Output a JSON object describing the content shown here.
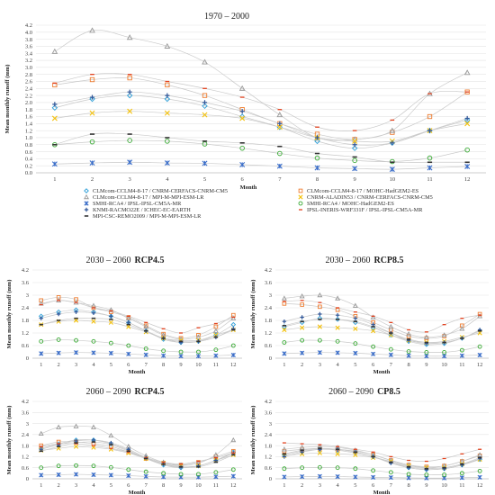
{
  "legend": [
    {
      "label": "CLMcom-CCLM4-8-17 / CNRM-CERFACS-CNRM-CM5",
      "color": "#2e9fd8",
      "marker": "diamond"
    },
    {
      "label": "CLMcom-CCLM4-8-17 / MOHC-HadGEM2-ES",
      "color": "#ee7d31",
      "marker": "square"
    },
    {
      "label": "CLMcom-CCLM4-8-17 / MPI-M-MPI-ESM-LR",
      "color": "#999999",
      "marker": "triangle"
    },
    {
      "label": "CNRM-ALADIN53 / CNRM-CERFACS-CNRM-CM5",
      "color": "#f4c20d",
      "marker": "x"
    },
    {
      "label": "SMHI-RCA4 / IPSL-IPSL-CM5A-MR",
      "color": "#3b6ec9",
      "marker": "star"
    },
    {
      "label": "SMHI-RCA4 / MOHC-HadGEM2-ES",
      "color": "#3aaa35",
      "marker": "circle"
    },
    {
      "label": "KNMI-RACMO22E / ICHEC-EC-EARTH",
      "color": "#2f5597",
      "marker": "plus"
    },
    {
      "label": "IPSL-INERIS-WRF331F / IPSL-IPSL-CM5A-MR",
      "color": "#e2401c",
      "marker": "line"
    },
    {
      "label": "MPI-CSC-REMO2009 / MPI-M-MPI-ESM-LR",
      "color": "#333333",
      "marker": "dash"
    }
  ],
  "chart_data": [
    {
      "type": "line",
      "title": "1970 – 2000",
      "xlabel": "Month",
      "ylabel": "Mean monthly runoff (mm)",
      "ylim": [
        0,
        4.2
      ],
      "yticks": [
        "0.0",
        "0.2",
        "0.4",
        "0.6",
        "0.8",
        "1.0",
        "1.2",
        "1.4",
        "1.6",
        "1.8",
        "2.0",
        "2.2",
        "2.4",
        "2.6",
        "2.8",
        "3.0",
        "3.2",
        "3.4",
        "3.6",
        "3.8",
        "4.0",
        "4.2"
      ],
      "x": [
        1,
        2,
        3,
        4,
        5,
        6,
        7,
        8,
        9,
        10,
        11,
        12
      ],
      "series": [
        {
          "name": "CLMcom-CCLM4-8-17 / CNRM-CERFACS-CNRM-CM5",
          "values": [
            1.85,
            2.1,
            2.2,
            2.1,
            1.9,
            1.6,
            1.3,
            0.9,
            0.7,
            0.85,
            1.2,
            1.5
          ]
        },
        {
          "name": "CLMcom-CCLM4-8-17 / MOHC-HadGEM2-ES",
          "values": [
            2.5,
            2.65,
            2.7,
            2.5,
            2.2,
            1.8,
            1.4,
            1.1,
            0.95,
            1.15,
            1.6,
            2.3
          ]
        },
        {
          "name": "CLMcom-CCLM4-8-17 / MPI-M-MPI-ESM-LR",
          "values": [
            3.45,
            4.05,
            3.85,
            3.6,
            3.15,
            2.4,
            1.65,
            1.0,
            0.95,
            1.2,
            2.25,
            2.85
          ]
        },
        {
          "name": "CNRM-ALADIN53 / CNRM-CERFACS-CNRM-CM5",
          "values": [
            1.55,
            1.7,
            1.75,
            1.7,
            1.65,
            1.55,
            1.3,
            1.0,
            0.9,
            0.9,
            1.2,
            1.4
          ]
        },
        {
          "name": "SMHI-RCA4 / IPSL-IPSL-CM5A-MR",
          "values": [
            0.25,
            0.28,
            0.3,
            0.28,
            0.27,
            0.23,
            0.19,
            0.14,
            0.12,
            0.1,
            0.14,
            0.18
          ]
        },
        {
          "name": "SMHI-RCA4 / MOHC-HadGEM2-ES",
          "values": [
            0.8,
            0.88,
            0.92,
            0.9,
            0.82,
            0.7,
            0.55,
            0.42,
            0.35,
            0.32,
            0.42,
            0.65
          ]
        },
        {
          "name": "KNMI-RACMO22E / ICHEC-EC-EARTH",
          "values": [
            1.95,
            2.15,
            2.3,
            2.2,
            2.0,
            1.75,
            1.4,
            1.0,
            0.8,
            0.85,
            1.2,
            1.55
          ]
        },
        {
          "name": "IPSL-INERIS-WRF331F / IPSL-IPSL-CM5A-MR",
          "values": [
            2.55,
            2.8,
            2.8,
            2.6,
            2.4,
            2.15,
            1.8,
            1.3,
            1.2,
            1.5,
            2.25,
            2.3
          ]
        },
        {
          "name": "MPI-CSC-REMO2009 / MPI-M-MPI-ESM-LR",
          "values": [
            0.8,
            1.1,
            1.1,
            1.0,
            0.9,
            0.85,
            0.75,
            0.55,
            0.45,
            0.3,
            0.3,
            0.3
          ]
        }
      ]
    },
    {
      "type": "line",
      "title": "2030 – 2060",
      "title_bold": "RCP4.5",
      "xlabel": "Month",
      "ylabel": "Mean monthly runoff (mm)",
      "ylim": [
        0,
        4.2
      ],
      "yticks": [
        "0",
        "0.6",
        "1.2",
        "1.8",
        "2.4",
        "3",
        "3.6",
        "4.2"
      ],
      "x": [
        1,
        2,
        3,
        4,
        5,
        6,
        7,
        8,
        9,
        10,
        11,
        12
      ],
      "series": [
        {
          "name": "CLMcom-CCLM4-8-17 / CNRM-CERFACS-CNRM-CM5",
          "values": [
            2.0,
            2.2,
            2.3,
            2.2,
            2.0,
            1.7,
            1.3,
            0.9,
            0.75,
            0.8,
            1.1,
            1.6
          ]
        },
        {
          "name": "CLMcom-CCLM4-8-17 / MOHC-HadGEM2-ES",
          "values": [
            2.75,
            2.9,
            2.8,
            2.4,
            2.2,
            1.95,
            1.55,
            1.15,
            0.95,
            1.1,
            1.5,
            2.05
          ]
        },
        {
          "name": "CLMcom-CCLM4-8-17 / MPI-M-MPI-ESM-LR",
          "values": [
            2.6,
            2.75,
            2.65,
            2.5,
            2.3,
            1.9,
            1.5,
            1.1,
            0.9,
            1.0,
            1.3,
            1.9
          ]
        },
        {
          "name": "CNRM-ALADIN53 / CNRM-CERFACS-CNRM-CM5",
          "values": [
            1.6,
            1.75,
            1.8,
            1.75,
            1.7,
            1.5,
            1.25,
            0.95,
            0.85,
            0.85,
            1.1,
            1.35
          ]
        },
        {
          "name": "SMHI-RCA4 / IPSL-IPSL-CM5A-MR",
          "values": [
            0.22,
            0.25,
            0.27,
            0.26,
            0.24,
            0.2,
            0.16,
            0.12,
            0.1,
            0.1,
            0.12,
            0.15
          ]
        },
        {
          "name": "SMHI-RCA4 / MOHC-HadGEM2-ES",
          "values": [
            0.8,
            0.88,
            0.85,
            0.8,
            0.72,
            0.6,
            0.45,
            0.35,
            0.3,
            0.3,
            0.4,
            0.6
          ]
        },
        {
          "name": "KNMI-RACMO22E / ICHEC-EC-EARTH",
          "values": [
            1.9,
            2.1,
            2.2,
            2.15,
            2.0,
            1.7,
            1.3,
            0.95,
            0.75,
            0.8,
            1.0,
            1.4
          ]
        },
        {
          "name": "IPSL-INERIS-WRF331F / IPSL-IPSL-CM5A-MR",
          "values": [
            2.55,
            2.75,
            2.65,
            2.4,
            2.25,
            2.0,
            1.7,
            1.4,
            1.2,
            1.45,
            1.65,
            1.95
          ]
        },
        {
          "name": "MPI-CSC-REMO2009 / MPI-M-MPI-ESM-LR",
          "values": [
            1.6,
            1.8,
            1.9,
            1.9,
            1.85,
            1.6,
            1.3,
            0.95,
            0.8,
            0.8,
            1.0,
            1.35
          ]
        }
      ]
    },
    {
      "type": "line",
      "title": "2030 – 2060",
      "title_bold": "RCP8.5",
      "xlabel": "Month",
      "ylabel": "Mean monthly runoff (mm)",
      "ylim": [
        0,
        4.2
      ],
      "yticks": [
        "0",
        "0.6",
        "1.2",
        "1.8",
        "2.4",
        "3",
        "3.6",
        "4.2"
      ],
      "x": [
        1,
        2,
        3,
        4,
        5,
        6,
        7,
        8,
        9,
        10,
        11,
        12
      ],
      "series": [
        {
          "name": "CLMcom-CCLM4-8-17 / CNRM-CERFACS-CNRM-CM5",
          "values": [
            1.5,
            1.7,
            1.9,
            1.85,
            1.7,
            1.45,
            1.1,
            0.8,
            0.65,
            0.7,
            0.95,
            1.3
          ]
        },
        {
          "name": "CLMcom-CCLM4-8-17 / MOHC-HadGEM2-ES",
          "values": [
            2.6,
            2.55,
            2.45,
            2.3,
            2.0,
            1.7,
            1.35,
            1.05,
            0.95,
            1.05,
            1.55,
            2.1
          ]
        },
        {
          "name": "CLMcom-CCLM4-8-17 / MPI-M-MPI-ESM-LR",
          "values": [
            2.85,
            2.95,
            3.0,
            2.85,
            2.5,
            1.95,
            1.5,
            1.15,
            1.0,
            1.1,
            1.4,
            2.0
          ]
        },
        {
          "name": "CNRM-ALADIN53 / CNRM-CERFACS-CNRM-CM5",
          "values": [
            1.35,
            1.45,
            1.5,
            1.45,
            1.4,
            1.3,
            1.1,
            0.85,
            0.75,
            0.8,
            1.0,
            1.2
          ]
        },
        {
          "name": "SMHI-RCA4 / IPSL-IPSL-CM5A-MR",
          "values": [
            0.22,
            0.25,
            0.27,
            0.26,
            0.24,
            0.2,
            0.16,
            0.12,
            0.1,
            0.1,
            0.12,
            0.15
          ]
        },
        {
          "name": "SMHI-RCA4 / MOHC-HadGEM2-ES",
          "values": [
            0.75,
            0.85,
            0.85,
            0.8,
            0.7,
            0.55,
            0.42,
            0.32,
            0.28,
            0.28,
            0.38,
            0.55
          ]
        },
        {
          "name": "KNMI-RACMO22E / ICHEC-EC-EARTH",
          "values": [
            1.75,
            1.95,
            2.1,
            2.05,
            1.9,
            1.6,
            1.2,
            0.85,
            0.7,
            0.75,
            0.95,
            1.35
          ]
        },
        {
          "name": "IPSL-INERIS-WRF331F / IPSL-IPSL-CM5A-MR",
          "values": [
            2.7,
            2.75,
            2.65,
            2.4,
            2.2,
            2.0,
            1.7,
            1.35,
            1.25,
            1.6,
            1.9,
            2.05
          ]
        },
        {
          "name": "MPI-CSC-REMO2009 / MPI-M-MPI-ESM-LR",
          "values": [
            1.55,
            1.75,
            1.85,
            1.85,
            1.75,
            1.5,
            1.2,
            0.9,
            0.75,
            0.75,
            0.95,
            1.3
          ]
        }
      ]
    },
    {
      "type": "line",
      "title": "2060 – 2090",
      "title_bold": "RCP4.5",
      "xlabel": "Month",
      "ylabel": "Mean monthly runoff (mm)",
      "ylim": [
        0,
        4.2
      ],
      "yticks": [
        "0",
        "0.6",
        "1.2",
        "1.8",
        "2.4",
        "3",
        "3.6",
        "4.2"
      ],
      "x": [
        1,
        2,
        3,
        4,
        5,
        6,
        7,
        8,
        9,
        10,
        11,
        12
      ],
      "series": [
        {
          "name": "CLMcom-CCLM4-8-17 / CNRM-CERFACS-CNRM-CM5",
          "values": [
            1.65,
            1.9,
            2.1,
            2.1,
            1.9,
            1.55,
            1.1,
            0.75,
            0.6,
            0.7,
            1.0,
            1.45
          ]
        },
        {
          "name": "CLMcom-CCLM4-8-17 / MOHC-HadGEM2-ES",
          "values": [
            1.8,
            2.0,
            2.0,
            1.9,
            1.75,
            1.45,
            1.1,
            0.85,
            0.75,
            0.9,
            1.2,
            1.5
          ]
        },
        {
          "name": "CLMcom-CCLM4-8-17 / MPI-M-MPI-ESM-LR",
          "values": [
            2.45,
            2.8,
            2.85,
            2.8,
            2.35,
            1.75,
            1.25,
            0.9,
            0.75,
            0.85,
            1.3,
            2.1
          ]
        },
        {
          "name": "CNRM-ALADIN53 / CNRM-CERFACS-CNRM-CM5",
          "values": [
            1.55,
            1.65,
            1.75,
            1.7,
            1.6,
            1.4,
            1.1,
            0.85,
            0.7,
            0.7,
            1.0,
            1.3
          ]
        },
        {
          "name": "SMHI-RCA4 / IPSL-IPSL-CM5A-MR",
          "values": [
            0.2,
            0.22,
            0.24,
            0.22,
            0.2,
            0.17,
            0.13,
            0.1,
            0.09,
            0.09,
            0.11,
            0.14
          ]
        },
        {
          "name": "SMHI-RCA4 / MOHC-HadGEM2-ES",
          "values": [
            0.6,
            0.7,
            0.72,
            0.7,
            0.62,
            0.5,
            0.38,
            0.3,
            0.25,
            0.25,
            0.35,
            0.5
          ]
        },
        {
          "name": "KNMI-RACMO22E / ICHEC-EC-EARTH",
          "values": [
            1.6,
            1.85,
            2.05,
            2.1,
            1.95,
            1.6,
            1.15,
            0.8,
            0.62,
            0.7,
            1.0,
            1.4
          ]
        },
        {
          "name": "IPSL-INERIS-WRF331F / IPSL-IPSL-CM5A-MR",
          "values": [
            1.75,
            1.9,
            1.9,
            1.8,
            1.65,
            1.45,
            1.15,
            0.9,
            0.8,
            0.95,
            1.15,
            1.4
          ]
        },
        {
          "name": "MPI-CSC-REMO2009 / MPI-M-MPI-ESM-LR",
          "values": [
            1.5,
            1.75,
            1.95,
            2.0,
            1.85,
            1.5,
            1.1,
            0.8,
            0.65,
            0.65,
            0.9,
            1.3
          ]
        }
      ]
    },
    {
      "type": "line",
      "title": "2060 – 2090",
      "title_bold": "CP8.5",
      "xlabel": "Month",
      "ylabel": "Mean monthly runoff (mm)",
      "ylim": [
        0,
        4.2
      ],
      "yticks": [
        "0",
        "0.6",
        "1.2",
        "1.8",
        "2.4",
        "3",
        "3.6",
        "4.2"
      ],
      "x": [
        1,
        2,
        3,
        4,
        5,
        6,
        7,
        8,
        9,
        10,
        11,
        12
      ],
      "series": [
        {
          "name": "CLMcom-CCLM4-8-17 / CNRM-CERFACS-CNRM-CM5",
          "values": [
            1.3,
            1.5,
            1.6,
            1.55,
            1.4,
            1.2,
            0.9,
            0.6,
            0.5,
            0.55,
            0.75,
            1.05
          ]
        },
        {
          "name": "CLMcom-CCLM4-8-17 / MOHC-HadGEM2-ES",
          "values": [
            1.5,
            1.6,
            1.65,
            1.6,
            1.5,
            1.3,
            1.0,
            0.75,
            0.65,
            0.7,
            0.95,
            1.25
          ]
        },
        {
          "name": "CLMcom-CCLM4-8-17 / MPI-M-MPI-ESM-LR",
          "values": [
            1.6,
            1.7,
            1.75,
            1.7,
            1.55,
            1.3,
            1.0,
            0.75,
            0.6,
            0.7,
            0.95,
            1.3
          ]
        },
        {
          "name": "CNRM-ALADIN53 / CNRM-CERFACS-CNRM-CM5",
          "values": [
            1.25,
            1.35,
            1.4,
            1.35,
            1.3,
            1.15,
            0.95,
            0.7,
            0.6,
            0.6,
            0.8,
            1.05
          ]
        },
        {
          "name": "SMHI-RCA4 / IPSL-IPSL-CM5A-MR",
          "values": [
            0.1,
            0.12,
            0.13,
            0.12,
            0.1,
            0.08,
            0.07,
            0.05,
            0.04,
            0.04,
            0.06,
            0.08
          ]
        },
        {
          "name": "SMHI-RCA4 / MOHC-HadGEM2-ES",
          "values": [
            0.55,
            0.6,
            0.62,
            0.6,
            0.55,
            0.45,
            0.35,
            0.25,
            0.22,
            0.22,
            0.3,
            0.42
          ]
        },
        {
          "name": "KNMI-RACMO22E / ICHEC-EC-EARTH",
          "values": [
            1.2,
            1.45,
            1.6,
            1.6,
            1.45,
            1.2,
            0.85,
            0.6,
            0.5,
            0.55,
            0.75,
            1.1
          ]
        },
        {
          "name": "IPSL-INERIS-WRF331F / IPSL-IPSL-CM5A-MR",
          "values": [
            1.95,
            1.9,
            1.85,
            1.75,
            1.6,
            1.45,
            1.2,
            1.0,
            0.95,
            1.1,
            1.35,
            1.6
          ]
        },
        {
          "name": "MPI-CSC-REMO2009 / MPI-M-MPI-ESM-LR",
          "values": [
            1.35,
            1.55,
            1.65,
            1.6,
            1.45,
            1.2,
            0.9,
            0.65,
            0.55,
            0.6,
            0.8,
            1.15
          ]
        }
      ]
    }
  ]
}
